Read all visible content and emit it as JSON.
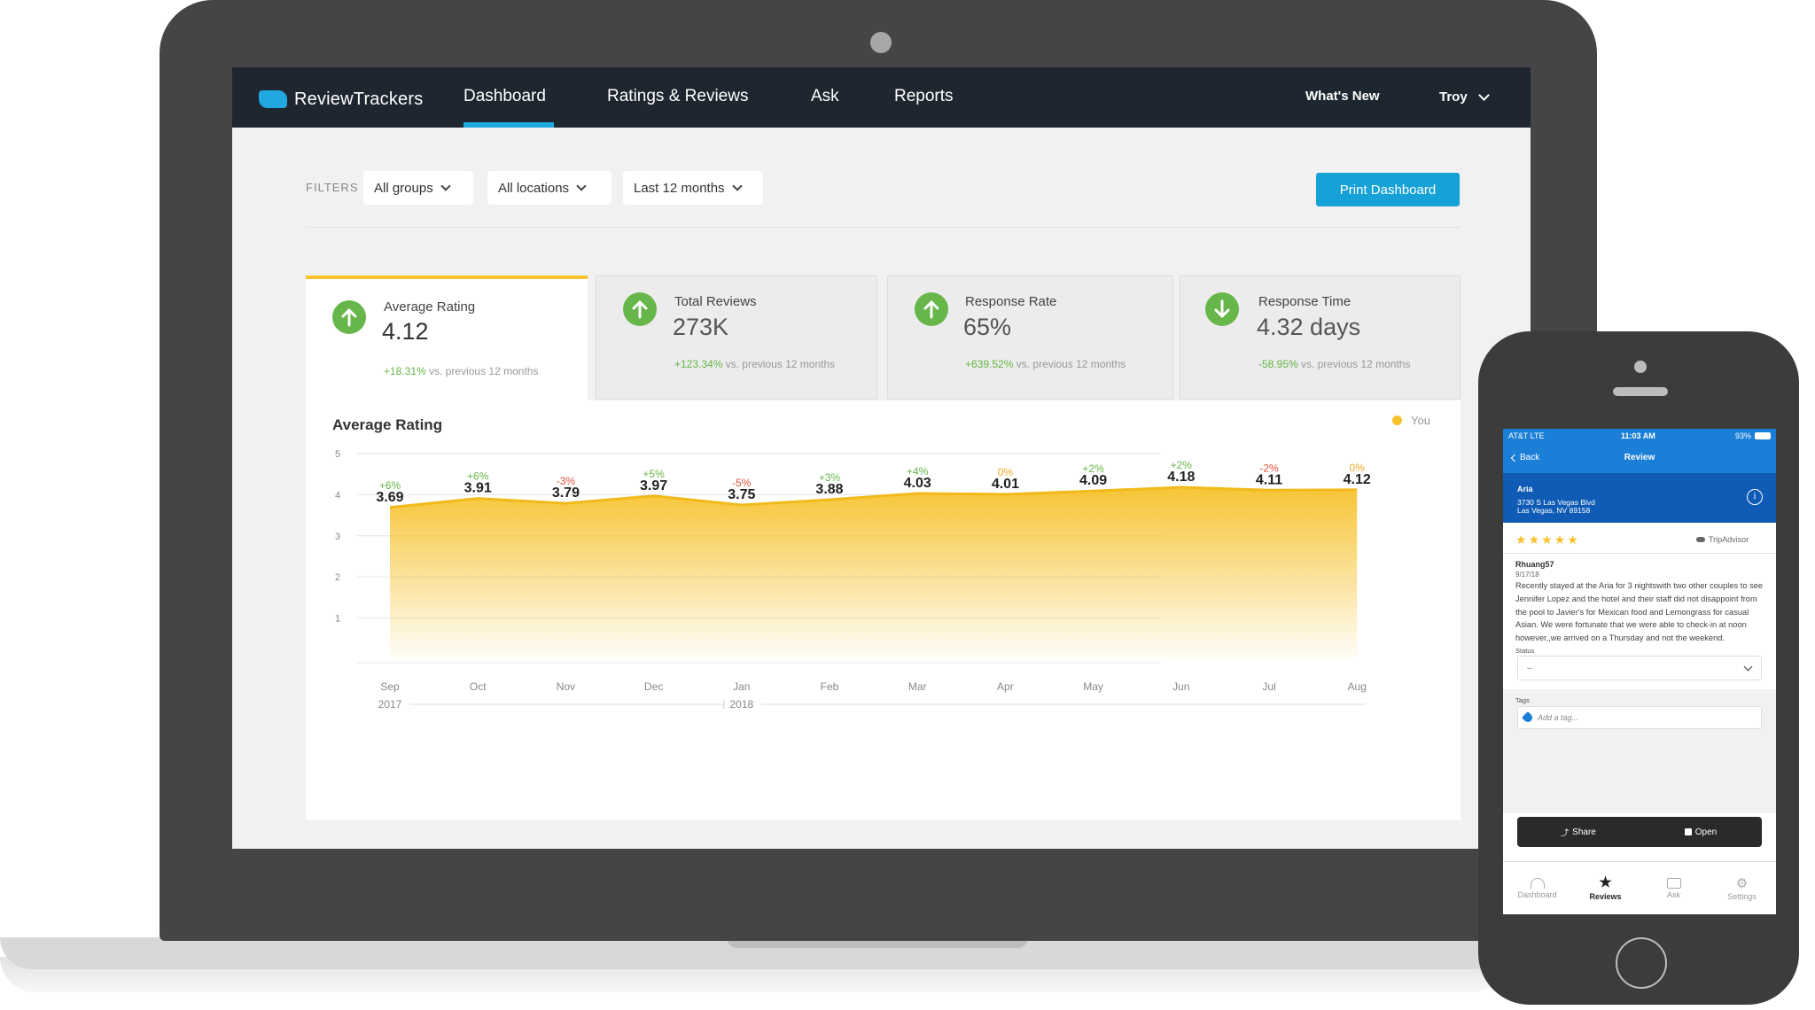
{
  "nav": {
    "logo_text": "ReviewTrackers",
    "items": [
      {
        "label": "Dashboard",
        "active": true
      },
      {
        "label": "Ratings & Reviews"
      },
      {
        "label": "Ask"
      },
      {
        "label": "Reports"
      }
    ],
    "whats_new": "What's New",
    "user": "Troy"
  },
  "filters": {
    "label": "FILTERS",
    "groups": "All groups",
    "locations": "All locations",
    "period": "Last 12 months",
    "print_button": "Print Dashboard"
  },
  "stats": [
    {
      "label": "Average Rating",
      "value": "4.12",
      "delta": "+18.31%",
      "compare": "vs. previous 12 months",
      "direction": "up"
    },
    {
      "label": "Total Reviews",
      "value": "273K",
      "delta": "+123.34%",
      "compare": "vs. previous 12 months",
      "direction": "up"
    },
    {
      "label": "Response Rate",
      "value": "65%",
      "delta": "+639.52%",
      "compare": "vs. previous 12 months",
      "direction": "up"
    },
    {
      "label": "Response Time",
      "value": "4.32 days",
      "delta": "-58.95%",
      "compare": "vs. previous 12 months",
      "direction": "down"
    }
  ],
  "chart": {
    "title": "Average Rating",
    "legend": "You",
    "year_labels": [
      "2017",
      "2018"
    ]
  },
  "chart_data": {
    "type": "area",
    "title": "Average Rating",
    "categories": [
      "Sep",
      "Oct",
      "Nov",
      "Dec",
      "Jan",
      "Feb",
      "Mar",
      "Apr",
      "May",
      "Jun",
      "Jul",
      "Aug"
    ],
    "series": [
      {
        "name": "You",
        "values": [
          3.69,
          3.91,
          3.79,
          3.97,
          3.75,
          3.88,
          4.03,
          4.01,
          4.09,
          4.18,
          4.11,
          4.12
        ],
        "changes": [
          "+6%",
          "+6%",
          "-3%",
          "+5%",
          "-5%",
          "+3%",
          "+4%",
          "0%",
          "+2%",
          "+2%",
          "-2%",
          "0%"
        ]
      }
    ],
    "yticks": [
      "1",
      "2",
      "3",
      "4",
      "5"
    ],
    "ylim": [
      0,
      5
    ],
    "grid": true,
    "legend_position": "top-right",
    "colors": {
      "fill": "#f6c12a",
      "positive": "#66b546",
      "negative": "#e0533f",
      "neutral": "#f3a72b"
    }
  },
  "phone": {
    "status_left": "AT&T  LTE",
    "time": "11:03 AM",
    "battery": "93%",
    "back": "Back",
    "header_title": "Review",
    "business_name": "Aria",
    "address_line1": "3730 S Las Vegas Blvd",
    "address_line2": "Las Vegas, NV 89158",
    "source": "TripAdvisor",
    "reviewer": "Rhuang57",
    "review_date": "9/17/18",
    "review_text": "Recently stayed at the Aria for 3 nightswith two other couples to see Jennifer Lopez and the hotel and their staff did not disappoint from the pool to Javier's for Mexican food and Lemongrass for casual Asian. We were fortunate that we were able to check-in at noon however,,we arrived on a Thursday and not the weekend.",
    "status_label": "Status",
    "status_value": "--",
    "tags_label": "Tags",
    "tags_placeholder": "Add a tag...",
    "share": "Share",
    "open": "Open",
    "tabs": [
      "Dashboard",
      "Reviews",
      "Ask",
      "Settings"
    ]
  }
}
